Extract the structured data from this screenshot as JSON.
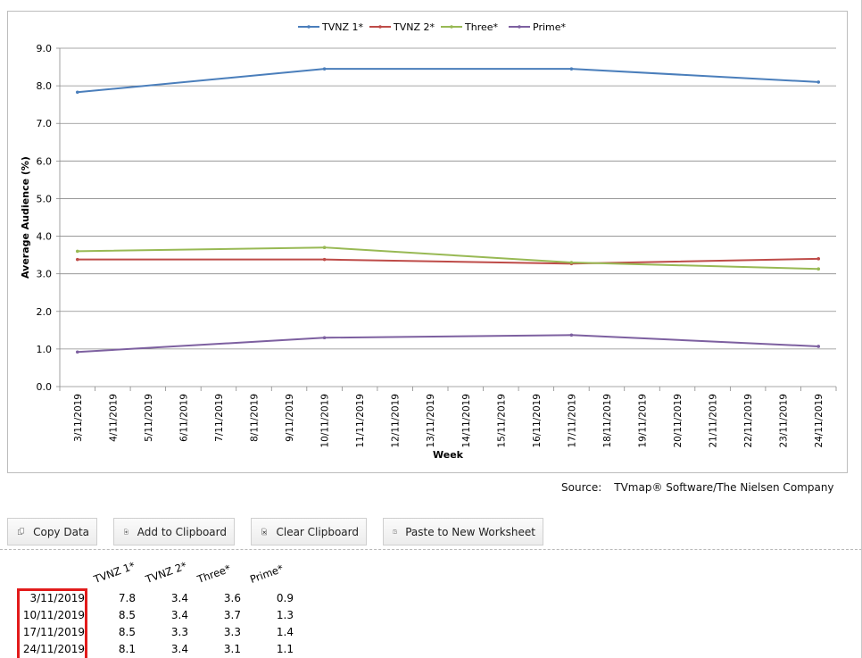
{
  "chart_data": {
    "type": "line",
    "xlabel": "Week",
    "ylabel": "Average Audience (%)",
    "ylim": [
      0,
      9
    ],
    "yticks": [
      "0.0",
      "1.0",
      "2.0",
      "3.0",
      "4.0",
      "5.0",
      "6.0",
      "7.0",
      "8.0",
      "9.0"
    ],
    "grid": "horizontal",
    "legend": "top-center",
    "categories": [
      "3/11/2019",
      "4/11/2019",
      "5/11/2019",
      "6/11/2019",
      "7/11/2019",
      "8/11/2019",
      "9/11/2019",
      "10/11/2019",
      "11/11/2019",
      "12/11/2019",
      "13/11/2019",
      "14/11/2019",
      "15/11/2019",
      "16/11/2019",
      "17/11/2019",
      "18/11/2019",
      "19/11/2019",
      "20/11/2019",
      "21/11/2019",
      "22/11/2019",
      "23/11/2019",
      "24/11/2019"
    ],
    "series": [
      {
        "name": "TVNZ 1*",
        "color": "#4a7ebb",
        "points": [
          [
            "3/11/2019",
            7.83
          ],
          [
            "10/11/2019",
            8.45
          ],
          [
            "17/11/2019",
            8.45
          ],
          [
            "24/11/2019",
            8.1
          ]
        ]
      },
      {
        "name": "TVNZ 2*",
        "color": "#be4b48",
        "points": [
          [
            "3/11/2019",
            3.38
          ],
          [
            "10/11/2019",
            3.38
          ],
          [
            "17/11/2019",
            3.27
          ],
          [
            "24/11/2019",
            3.4
          ]
        ]
      },
      {
        "name": "Three*",
        "color": "#98b954",
        "points": [
          [
            "3/11/2019",
            3.6
          ],
          [
            "10/11/2019",
            3.7
          ],
          [
            "17/11/2019",
            3.3
          ],
          [
            "24/11/2019",
            3.13
          ]
        ]
      },
      {
        "name": "Prime*",
        "color": "#7d60a0",
        "points": [
          [
            "3/11/2019",
            0.92
          ],
          [
            "10/11/2019",
            1.3
          ],
          [
            "17/11/2019",
            1.37
          ],
          [
            "24/11/2019",
            1.07
          ]
        ]
      }
    ]
  },
  "source": {
    "label": "Source:",
    "text": "TVmap® Software/The Nielsen Company"
  },
  "toolbar": {
    "copy_data": "Copy Data",
    "add_to_clipboard": "Add to Clipboard",
    "clear_clipboard": "Clear Clipboard",
    "paste_to_new_worksheet": "Paste to New Worksheet"
  },
  "table": {
    "columns": [
      "TVNZ 1*",
      "TVNZ 2*",
      "Three*",
      "Prime*"
    ],
    "rows": [
      {
        "date": "3/11/2019",
        "values": [
          "7.8",
          "3.4",
          "3.6",
          "0.9"
        ]
      },
      {
        "date": "10/11/2019",
        "values": [
          "8.5",
          "3.4",
          "3.7",
          "1.3"
        ]
      },
      {
        "date": "17/11/2019",
        "values": [
          "8.5",
          "3.3",
          "3.3",
          "1.4"
        ]
      },
      {
        "date": "24/11/2019",
        "values": [
          "8.1",
          "3.4",
          "3.1",
          "1.1"
        ]
      }
    ]
  },
  "highlight_color": "#e21b1b"
}
